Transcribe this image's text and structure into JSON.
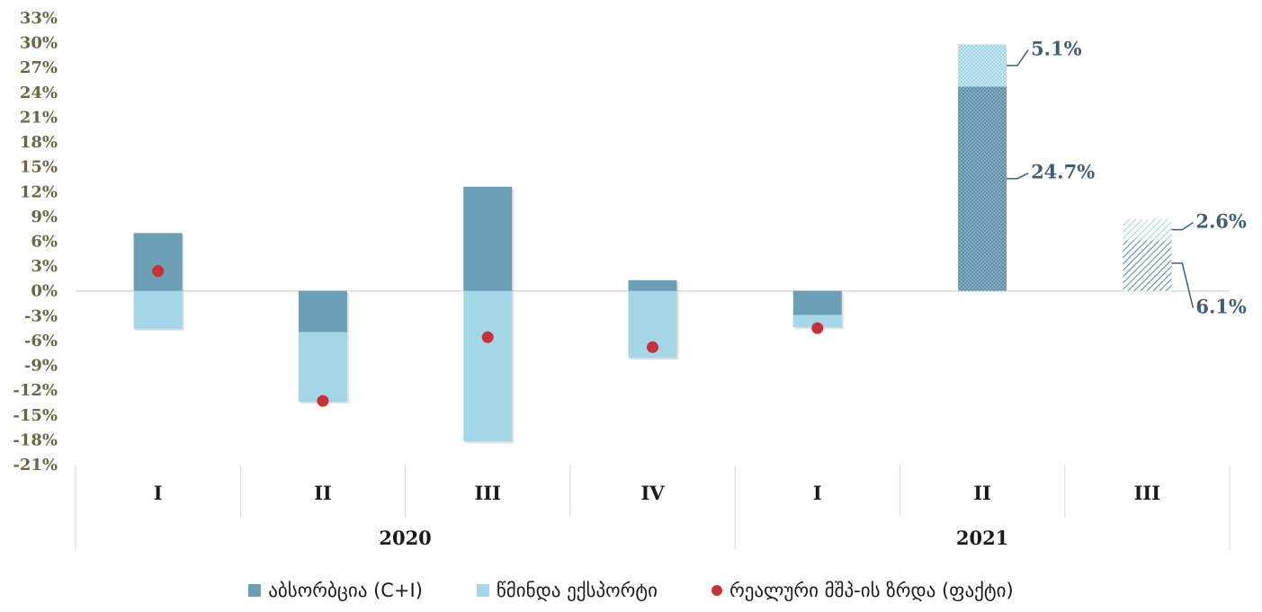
{
  "chart_data": {
    "type": "bar",
    "stacked": true,
    "ylim": [
      -21,
      33
    ],
    "ytick_step": 3,
    "ytick_format": "{v}%",
    "categories": [
      "I",
      "II",
      "III",
      "IV",
      "I",
      "II",
      "III"
    ],
    "groups": [
      {
        "label": "2020",
        "categories": [
          0,
          1,
          2,
          3
        ]
      },
      {
        "label": "2021",
        "categories": [
          4,
          5,
          6
        ]
      }
    ],
    "series": [
      {
        "name": "აბსორბცია (C+I)",
        "color": "#6a9fb5",
        "values": [
          7.0,
          -5.0,
          12.6,
          1.3,
          -2.9,
          24.7,
          6.1
        ]
      },
      {
        "name": "წმინდა ექსპორტი",
        "color": "#a3d7e8",
        "values": [
          -4.6,
          -8.4,
          -18.2,
          -8.1,
          -1.5,
          5.1,
          2.6
        ]
      },
      {
        "name": "რეალური მშპ-ის ზრდა (ფაქტი)",
        "color": "#c8313a",
        "kind": "point",
        "values": [
          2.4,
          -13.3,
          -5.6,
          -6.8,
          -4.5,
          null,
          null
        ]
      }
    ],
    "hatched_categories": [
      5,
      6
    ],
    "data_labels": [
      {
        "category": 5,
        "series": 1,
        "text": "5.1%"
      },
      {
        "category": 5,
        "series": 0,
        "text": "24.7%"
      },
      {
        "category": 6,
        "series": 1,
        "text": "2.6%"
      },
      {
        "category": 6,
        "series": 0,
        "text": "6.1%"
      }
    ]
  },
  "legend": [
    {
      "label": "აბსორბცია (C+I)",
      "color": "#6a9fb5",
      "shape": "square"
    },
    {
      "label": "წმინდა ექსპორტი",
      "color": "#a3d7e8",
      "shape": "square"
    },
    {
      "label": "რეალური მშპ-ის ზრდა (ფაქტი)",
      "color": "#c8313a",
      "shape": "circle"
    }
  ]
}
